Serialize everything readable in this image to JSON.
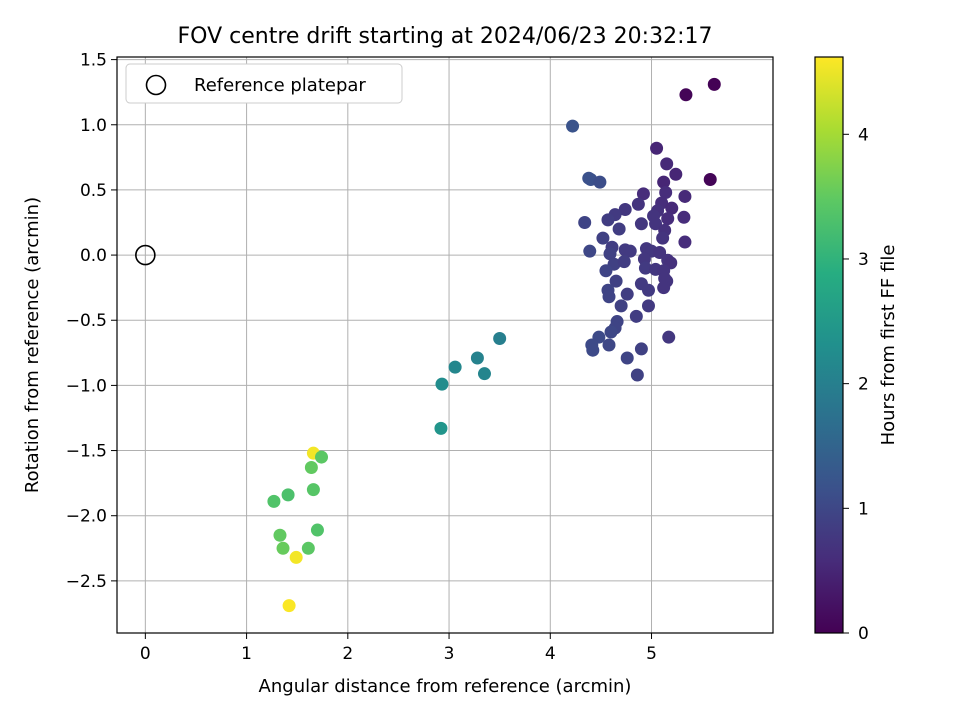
{
  "chart_data": {
    "type": "scatter",
    "title": "FOV centre drift starting at 2024/06/23 20:32:17",
    "xlabel": "Angular distance from reference (arcmin)",
    "ylabel": "Rotation from reference (arcmin)",
    "xlim": [
      -0.28,
      6.2
    ],
    "ylim": [
      -2.9,
      1.52
    ],
    "xticks": [
      0,
      1,
      2,
      3,
      4,
      5
    ],
    "xtick_labels": [
      "0",
      "1",
      "2",
      "3",
      "4",
      "5"
    ],
    "yticks": [
      1.5,
      1.0,
      0.5,
      0.0,
      -0.5,
      -1.0,
      -1.5,
      -2.0,
      -2.5
    ],
    "ytick_labels": [
      "1.5",
      "1.0",
      "0.5",
      "0.0",
      "−0.5",
      "−1.0",
      "−1.5",
      "−2.0",
      "−2.5"
    ],
    "grid": true,
    "legend": {
      "position": "upper left",
      "entries": [
        "Reference platepar"
      ]
    },
    "reference_point": {
      "x": 0.0,
      "y": 0.0,
      "marker": "open-circle"
    },
    "colorbar": {
      "label": "Hours from first FF file",
      "range": [
        0,
        4.62
      ],
      "ticks": [
        0,
        1,
        2,
        3,
        4
      ],
      "tick_labels": [
        "0",
        "1",
        "2",
        "3",
        "4"
      ],
      "colormap": "viridis"
    },
    "points": [
      {
        "x": 5.62,
        "y": 1.31,
        "c": 0.02
      },
      {
        "x": 5.34,
        "y": 1.23,
        "c": 0.05
      },
      {
        "x": 5.58,
        "y": 0.58,
        "c": 0.05
      },
      {
        "x": 5.05,
        "y": 0.82,
        "c": 0.5
      },
      {
        "x": 5.15,
        "y": 0.7,
        "c": 0.55
      },
      {
        "x": 5.24,
        "y": 0.62,
        "c": 0.5
      },
      {
        "x": 5.12,
        "y": 0.56,
        "c": 0.5
      },
      {
        "x": 5.33,
        "y": 0.45,
        "c": 0.55
      },
      {
        "x": 5.14,
        "y": 0.48,
        "c": 0.6
      },
      {
        "x": 4.92,
        "y": 0.47,
        "c": 0.6
      },
      {
        "x": 4.87,
        "y": 0.39,
        "c": 0.7
      },
      {
        "x": 4.74,
        "y": 0.35,
        "c": 0.75
      },
      {
        "x": 5.1,
        "y": 0.4,
        "c": 0.6
      },
      {
        "x": 5.2,
        "y": 0.36,
        "c": 0.55
      },
      {
        "x": 5.06,
        "y": 0.34,
        "c": 0.65
      },
      {
        "x": 5.32,
        "y": 0.29,
        "c": 0.6
      },
      {
        "x": 5.16,
        "y": 0.28,
        "c": 0.6
      },
      {
        "x": 5.02,
        "y": 0.3,
        "c": 0.7
      },
      {
        "x": 4.64,
        "y": 0.31,
        "c": 0.8
      },
      {
        "x": 4.57,
        "y": 0.27,
        "c": 0.85
      },
      {
        "x": 4.9,
        "y": 0.24,
        "c": 0.75
      },
      {
        "x": 5.04,
        "y": 0.24,
        "c": 0.7
      },
      {
        "x": 4.34,
        "y": 0.25,
        "c": 0.95
      },
      {
        "x": 4.68,
        "y": 0.2,
        "c": 0.85
      },
      {
        "x": 5.13,
        "y": 0.19,
        "c": 0.65
      },
      {
        "x": 5.11,
        "y": 0.13,
        "c": 0.7
      },
      {
        "x": 4.52,
        "y": 0.13,
        "c": 0.9
      },
      {
        "x": 5.33,
        "y": 0.1,
        "c": 0.6
      },
      {
        "x": 4.39,
        "y": 0.03,
        "c": 1.0
      },
      {
        "x": 4.61,
        "y": 0.06,
        "c": 0.85
      },
      {
        "x": 4.59,
        "y": 0.01,
        "c": 0.9
      },
      {
        "x": 4.74,
        "y": 0.04,
        "c": 0.8
      },
      {
        "x": 4.79,
        "y": 0.03,
        "c": 0.8
      },
      {
        "x": 4.95,
        "y": 0.05,
        "c": 0.75
      },
      {
        "x": 5.0,
        "y": 0.03,
        "c": 0.75
      },
      {
        "x": 5.08,
        "y": 0.02,
        "c": 0.7
      },
      {
        "x": 4.93,
        "y": -0.03,
        "c": 0.75
      },
      {
        "x": 5.16,
        "y": -0.04,
        "c": 0.7
      },
      {
        "x": 5.19,
        "y": -0.06,
        "c": 0.65
      },
      {
        "x": 4.63,
        "y": -0.07,
        "c": 0.9
      },
      {
        "x": 4.73,
        "y": -0.05,
        "c": 0.85
      },
      {
        "x": 4.94,
        "y": -0.1,
        "c": 0.8
      },
      {
        "x": 5.04,
        "y": -0.11,
        "c": 0.75
      },
      {
        "x": 5.12,
        "y": -0.12,
        "c": 0.7
      },
      {
        "x": 4.55,
        "y": -0.12,
        "c": 0.95
      },
      {
        "x": 4.65,
        "y": -0.2,
        "c": 0.9
      },
      {
        "x": 5.13,
        "y": -0.18,
        "c": 0.7
      },
      {
        "x": 4.9,
        "y": -0.22,
        "c": 0.8
      },
      {
        "x": 5.15,
        "y": -0.2,
        "c": 0.7
      },
      {
        "x": 5.12,
        "y": -0.25,
        "c": 0.7
      },
      {
        "x": 4.57,
        "y": -0.27,
        "c": 0.95
      },
      {
        "x": 4.97,
        "y": -0.27,
        "c": 0.8
      },
      {
        "x": 4.76,
        "y": -0.3,
        "c": 0.85
      },
      {
        "x": 4.58,
        "y": -0.32,
        "c": 0.95
      },
      {
        "x": 4.7,
        "y": -0.39,
        "c": 0.9
      },
      {
        "x": 4.97,
        "y": -0.39,
        "c": 0.8
      },
      {
        "x": 4.85,
        "y": -0.47,
        "c": 0.85
      },
      {
        "x": 4.66,
        "y": -0.51,
        "c": 0.95
      },
      {
        "x": 4.64,
        "y": -0.56,
        "c": 0.95
      },
      {
        "x": 4.6,
        "y": -0.59,
        "c": 1.0
      },
      {
        "x": 5.17,
        "y": -0.63,
        "c": 0.75
      },
      {
        "x": 4.48,
        "y": -0.63,
        "c": 1.05
      },
      {
        "x": 4.41,
        "y": -0.69,
        "c": 1.05
      },
      {
        "x": 4.58,
        "y": -0.69,
        "c": 1.0
      },
      {
        "x": 4.9,
        "y": -0.72,
        "c": 0.9
      },
      {
        "x": 4.42,
        "y": -0.73,
        "c": 1.05
      },
      {
        "x": 4.76,
        "y": -0.79,
        "c": 0.95
      },
      {
        "x": 4.86,
        "y": -0.92,
        "c": 0.9
      },
      {
        "x": 4.22,
        "y": 0.99,
        "c": 1.2
      },
      {
        "x": 4.4,
        "y": 0.58,
        "c": 1.15
      },
      {
        "x": 4.38,
        "y": 0.59,
        "c": 1.15
      },
      {
        "x": 4.49,
        "y": 0.56,
        "c": 1.1
      },
      {
        "x": 3.5,
        "y": -0.64,
        "c": 2.0
      },
      {
        "x": 3.28,
        "y": -0.79,
        "c": 2.05
      },
      {
        "x": 3.06,
        "y": -0.86,
        "c": 2.15
      },
      {
        "x": 3.35,
        "y": -0.91,
        "c": 2.1
      },
      {
        "x": 2.93,
        "y": -0.99,
        "c": 2.25
      },
      {
        "x": 2.92,
        "y": -1.33,
        "c": 2.4
      },
      {
        "x": 1.66,
        "y": -1.52,
        "c": 4.55
      },
      {
        "x": 1.74,
        "y": -1.55,
        "c": 3.45
      },
      {
        "x": 1.64,
        "y": -1.63,
        "c": 3.5
      },
      {
        "x": 1.66,
        "y": -1.8,
        "c": 3.4
      },
      {
        "x": 1.41,
        "y": -1.84,
        "c": 3.3
      },
      {
        "x": 1.27,
        "y": -1.89,
        "c": 3.35
      },
      {
        "x": 1.7,
        "y": -2.11,
        "c": 3.35
      },
      {
        "x": 1.33,
        "y": -2.15,
        "c": 3.5
      },
      {
        "x": 1.36,
        "y": -2.25,
        "c": 3.55
      },
      {
        "x": 1.61,
        "y": -2.25,
        "c": 3.45
      },
      {
        "x": 1.49,
        "y": -2.32,
        "c": 4.55
      },
      {
        "x": 1.42,
        "y": -2.69,
        "c": 4.6
      }
    ]
  }
}
